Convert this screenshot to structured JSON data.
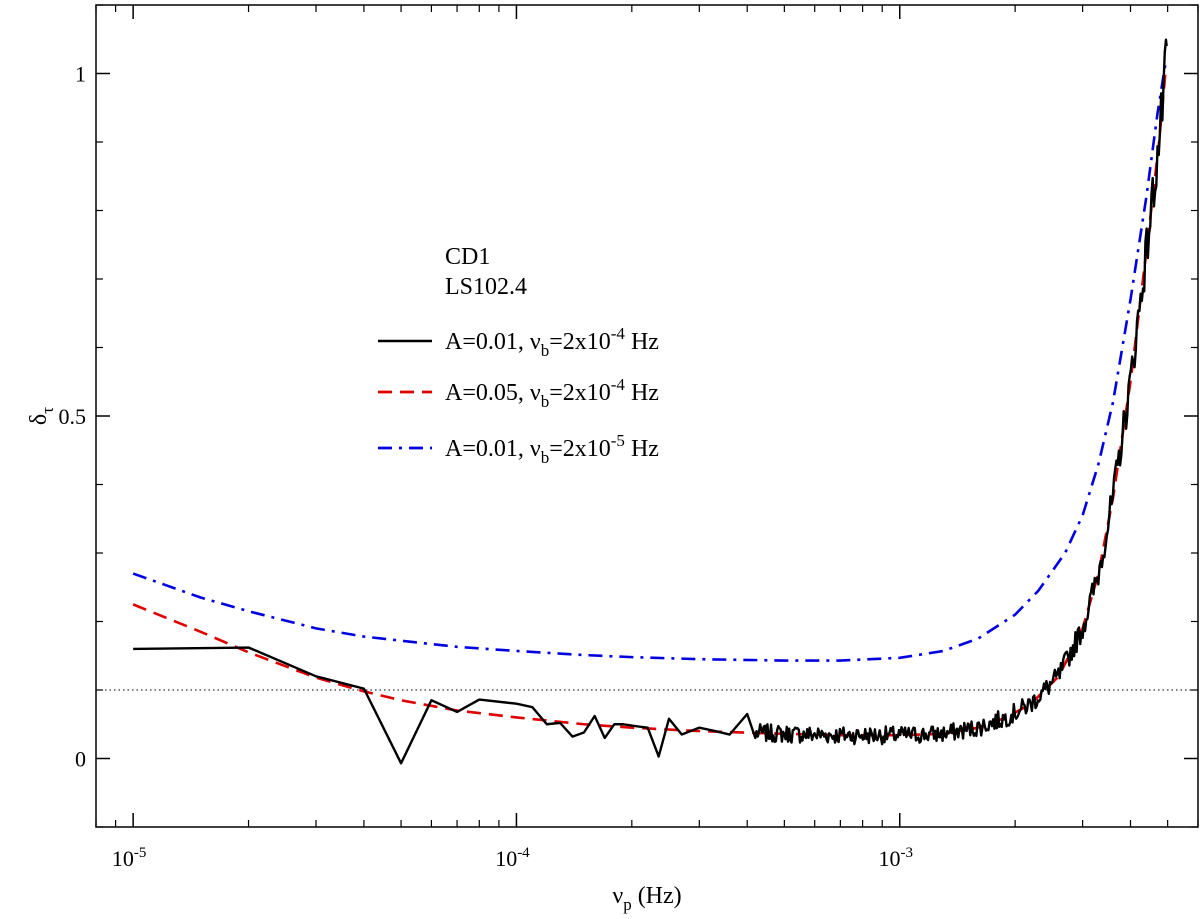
{
  "chart_data": {
    "type": "line",
    "x_scale": "log",
    "xlabel_main": "ν",
    "xlabel_sub": "p",
    "xlabel_unit": "(Hz)",
    "ylabel_main": "δ",
    "ylabel_sub": "τ",
    "xlim": [
      8e-06,
      0.006
    ],
    "ylim": [
      -0.1,
      1.1
    ],
    "x_ticks": [
      {
        "value": 1e-05,
        "base": "10",
        "exp": "-5"
      },
      {
        "value": 0.0001,
        "base": "10",
        "exp": "-4"
      },
      {
        "value": 0.001,
        "base": "10",
        "exp": "-3"
      }
    ],
    "y_ticks": [
      {
        "value": 0,
        "label": "0"
      },
      {
        "value": 0.5,
        "label": "0.5"
      },
      {
        "value": 1,
        "label": "1"
      }
    ],
    "reference_line": {
      "y": 0.1,
      "style": "dotted",
      "color": "#000000"
    },
    "legend_titles": [
      "CD1",
      "LS102.4"
    ],
    "legend_position": "center-left",
    "series": [
      {
        "name": "A=0.01, νb=2x10-4 Hz",
        "legend": {
          "pre": "A=0.01, ν",
          "sub": "b",
          "mid": "=2x10",
          "sup": "-4",
          "post": " Hz"
        },
        "color": "#000000",
        "dash": "solid",
        "points": [
          [
            1e-05,
            0.16
          ],
          [
            2e-05,
            0.162
          ],
          [
            3e-05,
            0.12
          ],
          [
            4e-05,
            0.102
          ],
          [
            5e-05,
            -0.007
          ],
          [
            6e-05,
            0.085
          ],
          [
            7e-05,
            0.068
          ],
          [
            8e-05,
            0.086
          ],
          [
            0.0001,
            0.08
          ],
          [
            0.00011,
            0.075
          ],
          [
            0.00012,
            0.05
          ],
          [
            0.00013,
            0.052
          ],
          [
            0.00014,
            0.032
          ],
          [
            0.00015,
            0.038
          ],
          [
            0.00016,
            0.062
          ],
          [
            0.00017,
            0.03
          ],
          [
            0.00018,
            0.05
          ],
          [
            0.00019,
            0.05
          ],
          [
            0.0002,
            0.048
          ],
          [
            0.00022,
            0.045
          ],
          [
            0.000235,
            0.003
          ],
          [
            0.00025,
            0.058
          ],
          [
            0.00027,
            0.035
          ],
          [
            0.0003,
            0.045
          ],
          [
            0.00033,
            0.04
          ],
          [
            0.00036,
            0.035
          ],
          [
            0.0004,
            0.065
          ],
          [
            0.00042,
            0.03
          ]
        ],
        "noise": {
          "from": 0.00042,
          "to": 0.00495,
          "amplitude": 0.012,
          "steps": 340
        }
      },
      {
        "name": "A=0.05, νb=2x10-4 Hz",
        "legend": {
          "pre": "A=0.05, ν",
          "sub": "b",
          "mid": "=2x10",
          "sup": "-4",
          "post": " Hz"
        },
        "color": "#e00000",
        "dash": "14,8",
        "points": [
          [
            1e-05,
            0.225
          ],
          [
            1.5e-05,
            0.185
          ],
          [
            2e-05,
            0.155
          ],
          [
            3e-05,
            0.118
          ],
          [
            4e-05,
            0.098
          ],
          [
            5e-05,
            0.085
          ],
          [
            7e-05,
            0.07
          ],
          [
            0.0001,
            0.06
          ],
          [
            0.00015,
            0.05
          ],
          [
            0.0002,
            0.045
          ],
          [
            0.0003,
            0.04
          ],
          [
            0.0005,
            0.036
          ],
          [
            0.0007,
            0.034
          ],
          [
            0.001,
            0.034
          ],
          [
            0.0013,
            0.036
          ],
          [
            0.0016,
            0.045
          ],
          [
            0.0019,
            0.06
          ],
          [
            0.0022,
            0.08
          ],
          [
            0.0026,
            0.12
          ],
          [
            0.003,
            0.19
          ],
          [
            0.0033,
            0.27
          ],
          [
            0.0036,
            0.38
          ],
          [
            0.004,
            0.55
          ],
          [
            0.0044,
            0.74
          ],
          [
            0.00475,
            0.9
          ],
          [
            0.00495,
            1.01
          ]
        ]
      },
      {
        "name": "A=0.01, νb=2x10-5 Hz",
        "legend": {
          "pre": "A=0.01, ν",
          "sub": "b",
          "mid": "=2x10",
          "sup": "-5",
          "post": " Hz"
        },
        "color": "#0000e0",
        "dash": "14,7,3,7",
        "points": [
          [
            1e-05,
            0.27
          ],
          [
            1.5e-05,
            0.235
          ],
          [
            2e-05,
            0.215
          ],
          [
            3e-05,
            0.19
          ],
          [
            4e-05,
            0.178
          ],
          [
            5e-05,
            0.172
          ],
          [
            7e-05,
            0.163
          ],
          [
            0.0001,
            0.157
          ],
          [
            0.00015,
            0.151
          ],
          [
            0.0002,
            0.148
          ],
          [
            0.0003,
            0.145
          ],
          [
            0.0005,
            0.143
          ],
          [
            0.0007,
            0.143
          ],
          [
            0.001,
            0.147
          ],
          [
            0.0013,
            0.157
          ],
          [
            0.0016,
            0.175
          ],
          [
            0.002,
            0.21
          ],
          [
            0.0023,
            0.245
          ],
          [
            0.0027,
            0.3
          ],
          [
            0.003,
            0.355
          ],
          [
            0.0033,
            0.43
          ],
          [
            0.0036,
            0.52
          ],
          [
            0.004,
            0.67
          ],
          [
            0.0044,
            0.82
          ],
          [
            0.0047,
            0.94
          ],
          [
            0.00495,
            1.02
          ]
        ]
      }
    ]
  }
}
